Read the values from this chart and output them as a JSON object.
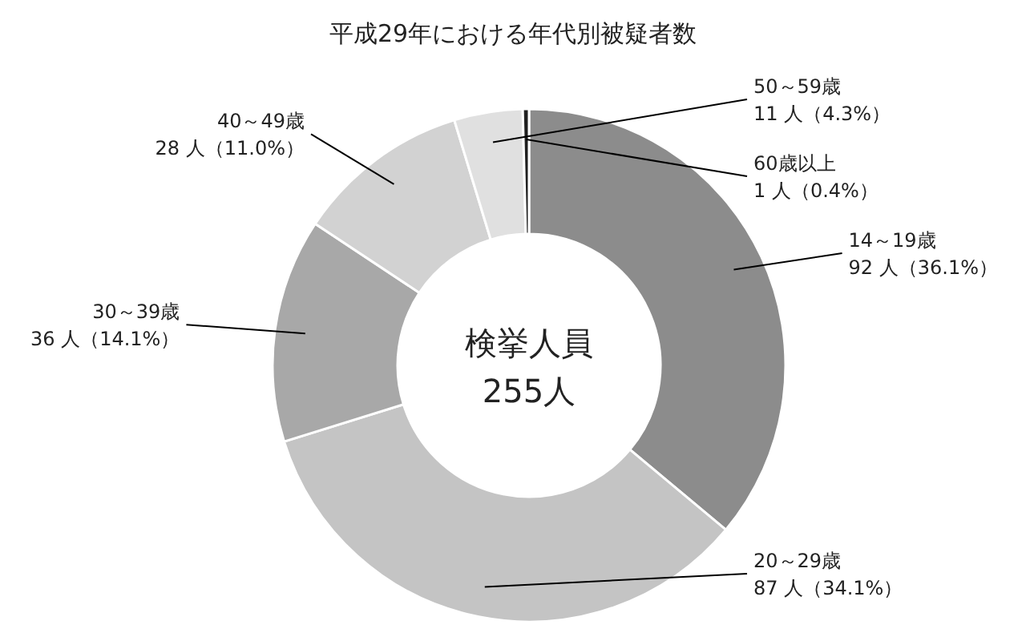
{
  "chart_data": {
    "type": "donut",
    "title": "平成29年における年代別被疑者数",
    "categories": [
      "14～19歳",
      "20～29歳",
      "30～39歳",
      "40～49歳",
      "50～59歳",
      "60歳以上"
    ],
    "values": [
      92,
      87,
      36,
      28,
      11,
      1
    ],
    "colors": [
      "#8c8c8c",
      "#c4c4c4",
      "#a8a8a8",
      "#d2d2d2",
      "#e0e0e0",
      "#202020"
    ],
    "value_labels": [
      "92 人（36.1%）",
      "87 人（34.1%）",
      "36 人（14.1%）",
      "28 人（11.0%）",
      "11 人（4.3%）",
      "1 人（0.4%）"
    ],
    "annotations": [
      "検挙人員",
      "255人"
    ]
  }
}
